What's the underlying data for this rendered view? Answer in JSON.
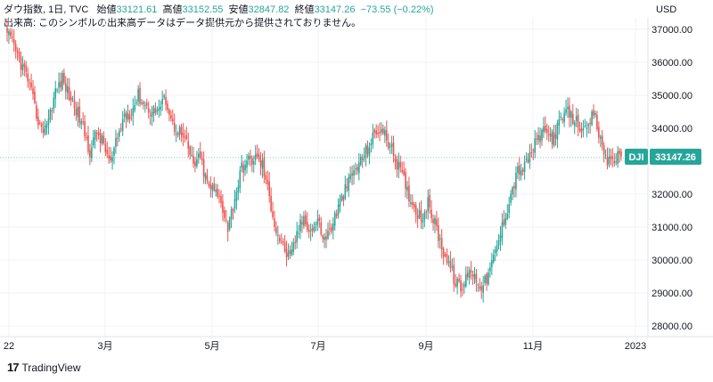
{
  "header": {
    "symbol": "ダウ指数, 1日, TVC",
    "open_label": "始値",
    "open_value": "33121.61",
    "high_label": "高値",
    "high_value": "33152.55",
    "low_label": "安値",
    "low_value": "32847.82",
    "close_label": "終値",
    "close_value": "33147.26",
    "change": "−73.55 (−0.22%)",
    "volume_note": "出来高: このシンボルの出来高データはデータ提供元から提供されておりません。"
  },
  "currency": "USD",
  "logo": {
    "text": "TradingView"
  },
  "colors": {
    "up": "#26a69a",
    "down": "#ef5350",
    "badge": "#26a69a",
    "grid": "#f0f3fa"
  },
  "chart_data": {
    "type": "candlestick",
    "symbol": "DJI",
    "last_price": "33147.26",
    "x_tick_labels": [
      "22",
      "3月",
      "5月",
      "7月",
      "9月",
      "11月",
      "2023"
    ],
    "y_tick_labels": [
      "37000.00",
      "36000.00",
      "35000.00",
      "34000.00",
      "33000.00",
      "32000.00",
      "31000.00",
      "30000.00",
      "29000.00",
      "28000.00"
    ],
    "ylim": [
      27800,
      37300
    ],
    "close_path": [
      [
        0,
        36900
      ],
      [
        6,
        36200
      ],
      [
        12,
        35500
      ],
      [
        16,
        34600
      ],
      [
        20,
        33900
      ],
      [
        24,
        34300
      ],
      [
        28,
        35100
      ],
      [
        32,
        35500
      ],
      [
        36,
        35000
      ],
      [
        40,
        34600
      ],
      [
        44,
        34000
      ],
      [
        48,
        33300
      ],
      [
        52,
        33900
      ],
      [
        56,
        33500
      ],
      [
        60,
        32900
      ],
      [
        64,
        33700
      ],
      [
        68,
        34400
      ],
      [
        72,
        34500
      ],
      [
        76,
        35000
      ],
      [
        80,
        34700
      ],
      [
        84,
        34500
      ],
      [
        88,
        34600
      ],
      [
        92,
        34900
      ],
      [
        96,
        34100
      ],
      [
        100,
        33900
      ],
      [
        104,
        33500
      ],
      [
        108,
        32900
      ],
      [
        112,
        33100
      ],
      [
        116,
        32300
      ],
      [
        120,
        32100
      ],
      [
        124,
        31800
      ],
      [
        128,
        31000
      ],
      [
        132,
        31900
      ],
      [
        136,
        32800
      ],
      [
        140,
        33000
      ],
      [
        144,
        33100
      ],
      [
        148,
        32900
      ],
      [
        152,
        31900
      ],
      [
        156,
        30900
      ],
      [
        160,
        30400
      ],
      [
        164,
        30000
      ],
      [
        168,
        30800
      ],
      [
        172,
        31300
      ],
      [
        176,
        30900
      ],
      [
        180,
        31200
      ],
      [
        184,
        30600
      ],
      [
        188,
        31000
      ],
      [
        192,
        31600
      ],
      [
        196,
        32100
      ],
      [
        200,
        32600
      ],
      [
        204,
        32900
      ],
      [
        208,
        33300
      ],
      [
        212,
        33700
      ],
      [
        216,
        34000
      ],
      [
        220,
        33700
      ],
      [
        224,
        33200
      ],
      [
        228,
        32700
      ],
      [
        232,
        32100
      ],
      [
        236,
        31600
      ],
      [
        240,
        31300
      ],
      [
        244,
        31700
      ],
      [
        248,
        31100
      ],
      [
        252,
        30400
      ],
      [
        256,
        29900
      ],
      [
        260,
        29300
      ],
      [
        264,
        29100
      ],
      [
        268,
        29800
      ],
      [
        272,
        29400
      ],
      [
        276,
        29200
      ],
      [
        280,
        29700
      ],
      [
        284,
        30400
      ],
      [
        288,
        31200
      ],
      [
        292,
        32000
      ],
      [
        296,
        32700
      ],
      [
        300,
        32800
      ],
      [
        304,
        33300
      ],
      [
        308,
        33700
      ],
      [
        312,
        33900
      ],
      [
        316,
        33700
      ],
      [
        320,
        34100
      ],
      [
        324,
        34500
      ],
      [
        328,
        34300
      ],
      [
        332,
        34100
      ],
      [
        336,
        33800
      ],
      [
        340,
        34500
      ],
      [
        344,
        33600
      ],
      [
        348,
        33000
      ],
      [
        352,
        33100
      ],
      [
        356,
        33147
      ]
    ],
    "grid": true
  }
}
